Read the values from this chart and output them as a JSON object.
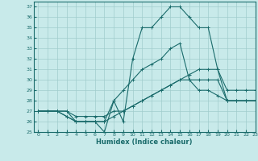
{
  "title": "",
  "xlabel": "Humidex (Indice chaleur)",
  "ylabel": "",
  "bg_color": "#c8eaea",
  "grid_color": "#a0cccc",
  "line_color": "#1a6b6b",
  "xlim": [
    -0.5,
    23
  ],
  "ylim": [
    25,
    37.5
  ],
  "xticks": [
    0,
    1,
    2,
    3,
    4,
    5,
    6,
    7,
    8,
    9,
    10,
    11,
    12,
    13,
    14,
    15,
    16,
    17,
    18,
    19,
    20,
    21,
    22,
    23
  ],
  "yticks": [
    25,
    26,
    27,
    28,
    29,
    30,
    31,
    32,
    33,
    34,
    35,
    36,
    37
  ],
  "series": [
    {
      "x": [
        0,
        1,
        2,
        3,
        4,
        5,
        6,
        7,
        8,
        9,
        10,
        11,
        12,
        13,
        14,
        15,
        16,
        17,
        18,
        19,
        20,
        21,
        22,
        23
      ],
      "y": [
        27,
        27,
        27,
        27,
        26,
        26,
        26,
        25,
        28,
        26,
        32,
        35,
        35,
        36,
        37,
        37,
        36,
        35,
        35,
        31,
        29,
        29,
        29,
        29
      ]
    },
    {
      "x": [
        0,
        1,
        2,
        3,
        4,
        5,
        6,
        7,
        8,
        9,
        10,
        11,
        12,
        13,
        14,
        15,
        16,
        17,
        18,
        19,
        20,
        21,
        22,
        23
      ],
      "y": [
        27,
        27,
        27,
        26.5,
        26,
        26,
        26,
        26,
        28,
        29,
        30,
        31,
        31.5,
        32,
        33,
        33.5,
        30,
        29,
        29,
        28.5,
        28,
        28,
        28,
        28
      ]
    },
    {
      "x": [
        0,
        1,
        2,
        3,
        4,
        5,
        6,
        7,
        8,
        9,
        10,
        11,
        12,
        13,
        14,
        15,
        16,
        17,
        18,
        19,
        20,
        21,
        22,
        23
      ],
      "y": [
        27,
        27,
        27,
        26.5,
        26,
        26,
        26,
        26,
        26.5,
        27,
        27.5,
        28,
        28.5,
        29,
        29.5,
        30,
        30.5,
        31,
        31,
        31,
        28,
        28,
        28,
        28
      ]
    },
    {
      "x": [
        0,
        1,
        2,
        3,
        4,
        5,
        6,
        7,
        8,
        9,
        10,
        11,
        12,
        13,
        14,
        15,
        16,
        17,
        18,
        19,
        20,
        21,
        22,
        23
      ],
      "y": [
        27,
        27,
        27,
        27,
        26.5,
        26.5,
        26.5,
        26.5,
        27,
        27,
        27.5,
        28,
        28.5,
        29,
        29.5,
        30,
        30,
        30,
        30,
        30,
        28,
        28,
        28,
        28
      ]
    }
  ]
}
